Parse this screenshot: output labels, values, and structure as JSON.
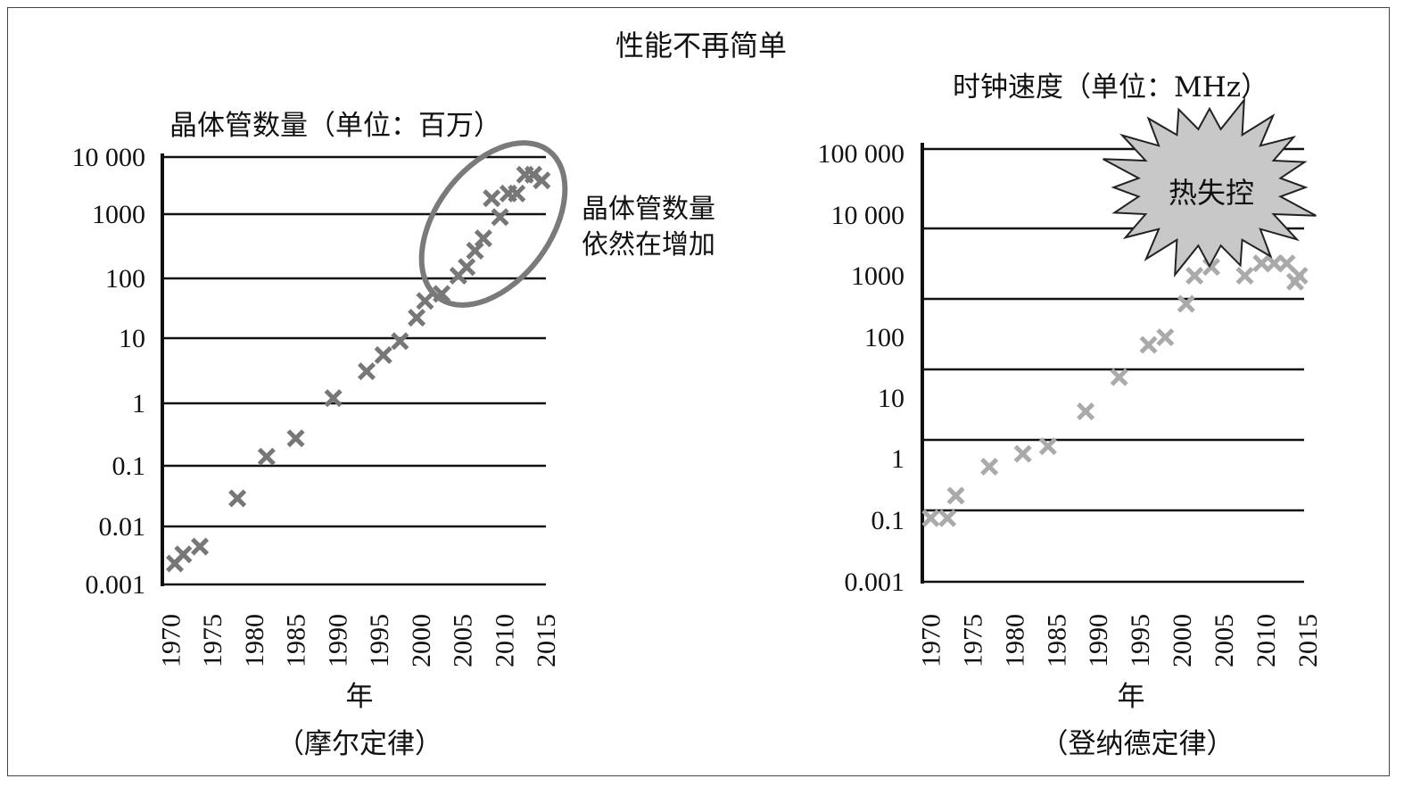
{
  "title": "性能不再简单",
  "chart_data": [
    {
      "type": "scatter",
      "y_scale": "log",
      "ylabel": "晶体管数量（单位：百万）",
      "xlabel": "年",
      "caption": "（摩尔定律）",
      "y_ticks": [
        "10 000",
        "1000",
        "100",
        "10",
        "1",
        "0.1",
        "0.01",
        "0.001"
      ],
      "y_tick_values": [
        10000,
        1000,
        100,
        10,
        1,
        0.1,
        0.01,
        0.001
      ],
      "x_ticks": [
        "1970",
        "1975",
        "1980",
        "1985",
        "1990",
        "1995",
        "2000",
        "2005",
        "2010",
        "2015"
      ],
      "xlim": [
        1969,
        2015
      ],
      "ylim": [
        0.001,
        10000
      ],
      "grid": true,
      "annotation": [
        "晶体管数量",
        "依然在增加"
      ],
      "points": [
        {
          "x": 1970.5,
          "y": 0.0023
        },
        {
          "x": 1971.5,
          "y": 0.0033
        },
        {
          "x": 1973.5,
          "y": 0.0045
        },
        {
          "x": 1978,
          "y": 0.029
        },
        {
          "x": 1981.5,
          "y": 0.14
        },
        {
          "x": 1985,
          "y": 0.275
        },
        {
          "x": 1989.5,
          "y": 1.2
        },
        {
          "x": 1993.5,
          "y": 3.1
        },
        {
          "x": 1995.5,
          "y": 5.5
        },
        {
          "x": 1997.5,
          "y": 9
        },
        {
          "x": 1999.5,
          "y": 22
        },
        {
          "x": 2000.5,
          "y": 42
        },
        {
          "x": 2002.5,
          "y": 55
        },
        {
          "x": 2004.5,
          "y": 110
        },
        {
          "x": 2005.5,
          "y": 150
        },
        {
          "x": 2006.5,
          "y": 270
        },
        {
          "x": 2007.5,
          "y": 420
        },
        {
          "x": 2008.5,
          "y": 1900
        },
        {
          "x": 2009.5,
          "y": 900
        },
        {
          "x": 2010.5,
          "y": 2300
        },
        {
          "x": 2011.5,
          "y": 2300
        },
        {
          "x": 2012.5,
          "y": 4900
        },
        {
          "x": 2013.5,
          "y": 4900
        },
        {
          "x": 2014.5,
          "y": 3900
        }
      ],
      "point_color": "#777777",
      "highlight_color": "#7a7a7a"
    },
    {
      "type": "scatter",
      "y_scale": "log",
      "ylabel": "时钟速度（单位：MHz）",
      "xlabel": "年",
      "caption": "（登纳德定律）",
      "y_ticks": [
        "100 000",
        "10 000",
        "1000",
        "100",
        "10",
        "1",
        "0.1",
        "0.001"
      ],
      "x_ticks": [
        "1970",
        "1975",
        "1980",
        "1985",
        "1990",
        "1995",
        "2000",
        "2005",
        "2010",
        "2015"
      ],
      "xlim": [
        1969,
        2015
      ],
      "grid": true,
      "annotation": [
        "热失控"
      ],
      "points": [
        {
          "x": 1970,
          "y": 0.108
        },
        {
          "x": 1972,
          "y": 0.108
        },
        {
          "x": 1973,
          "y": 0.25
        },
        {
          "x": 1977,
          "y": 0.74
        },
        {
          "x": 1981,
          "y": 1.2
        },
        {
          "x": 1984,
          "y": 1.6
        },
        {
          "x": 1988.5,
          "y": 6
        },
        {
          "x": 1992.5,
          "y": 22
        },
        {
          "x": 1996,
          "y": 75
        },
        {
          "x": 1998,
          "y": 100
        },
        {
          "x": 2000.5,
          "y": 350
        },
        {
          "x": 2001.5,
          "y": 1000
        },
        {
          "x": 2003.5,
          "y": 1400
        },
        {
          "x": 2007.5,
          "y": 1000
        },
        {
          "x": 2009.5,
          "y": 1600
        },
        {
          "x": 2011,
          "y": 1600
        },
        {
          "x": 2012.5,
          "y": 1600
        },
        {
          "x": 2013.5,
          "y": 800
        },
        {
          "x": 2014,
          "y": 1000
        }
      ],
      "point_color": "#aaaaaa",
      "burst_color": "#c8c8c8"
    }
  ]
}
